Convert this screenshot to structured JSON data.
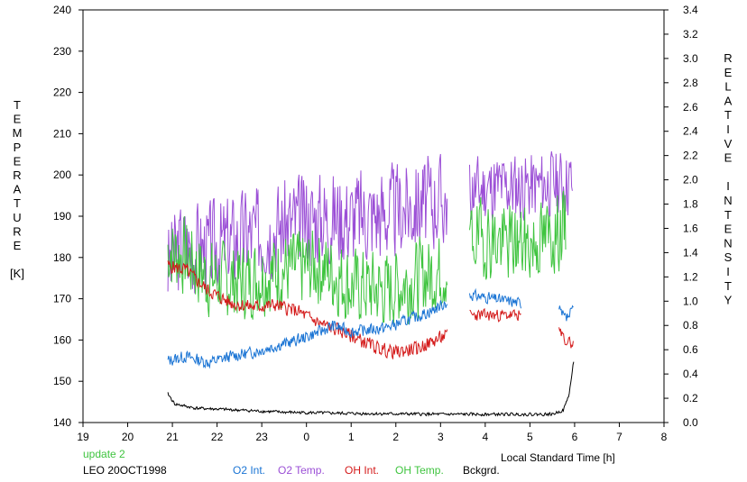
{
  "chart_data": {
    "type": "line",
    "xlabel": "Local Standard Time [h]",
    "ylabel_left": [
      "T",
      "E",
      "M",
      "P",
      "E",
      "R",
      "A",
      "T",
      "U",
      "R",
      "E",
      "",
      "[K]"
    ],
    "ylabel_right": [
      "R",
      "E",
      "L",
      "A",
      "T",
      "I",
      "V",
      "E",
      "",
      "I",
      "N",
      "T",
      "E",
      "N",
      "S",
      "I",
      "T",
      "Y"
    ],
    "x_ticks": [
      "19",
      "20",
      "21",
      "22",
      "23",
      "0",
      "1",
      "2",
      "3",
      "4",
      "5",
      "6",
      "7",
      "8"
    ],
    "y_left_ticks": [
      "140",
      "150",
      "160",
      "170",
      "180",
      "190",
      "200",
      "210",
      "220",
      "230",
      "240"
    ],
    "y_right_ticks": [
      "0.0",
      "0.2",
      "0.4",
      "0.6",
      "0.8",
      "1.0",
      "1.2",
      "1.4",
      "1.6",
      "1.8",
      "2.0",
      "2.2",
      "2.4",
      "2.6",
      "2.8",
      "3.0",
      "3.2",
      "3.4"
    ],
    "ylim_left": [
      140,
      240
    ],
    "ylim_right": [
      0.0,
      3.4
    ],
    "xlim_hours_after_19": [
      0,
      13
    ],
    "status_text": "update 2",
    "station_label": "LEO 20OCT1998",
    "legend": [
      {
        "name": "O2 Int.",
        "color": "#1a74d4"
      },
      {
        "name": "O2 Temp.",
        "color": "#9b4fd6"
      },
      {
        "name": "OH Int.",
        "color": "#d41a1a"
      },
      {
        "name": "OH Temp.",
        "color": "#3fc43f"
      },
      {
        "name": "Bckgrd.",
        "color": "#000000"
      }
    ],
    "series": [
      {
        "name": "O2 Temp.",
        "axis": "left",
        "color": "#9b4fd6",
        "segments": [
          {
            "t0": 20.9,
            "t1": 3.15,
            "base": [
              [
                20.9,
                178
              ],
              [
                21.2,
                183
              ],
              [
                21.8,
                182
              ],
              [
                22.5,
                185
              ],
              [
                23.5,
                188
              ],
              [
                0.3,
                190
              ],
              [
                1.0,
                190
              ],
              [
                1.8,
                191
              ],
              [
                2.5,
                193
              ],
              [
                3.1,
                194
              ]
            ],
            "amp": 11,
            "seed": 3
          },
          {
            "t0": 3.65,
            "t1": 5.95,
            "base": [
              [
                3.65,
                196
              ],
              [
                4.2,
                197
              ],
              [
                5.0,
                197
              ],
              [
                5.6,
                198
              ],
              [
                5.95,
                198
              ]
            ],
            "amp": 8,
            "seed": 11
          }
        ]
      },
      {
        "name": "OH Temp.",
        "axis": "left",
        "color": "#3fc43f",
        "segments": [
          {
            "t0": 20.9,
            "t1": 3.15,
            "base": [
              [
                20.9,
                182
              ],
              [
                21.3,
                180
              ],
              [
                21.8,
                175
              ],
              [
                22.5,
                174
              ],
              [
                23.5,
                177
              ],
              [
                0.3,
                178
              ],
              [
                1.0,
                173
              ],
              [
                1.8,
                172
              ],
              [
                2.5,
                175
              ],
              [
                3.1,
                177
              ]
            ],
            "amp": 9,
            "seed": 7
          },
          {
            "t0": 3.65,
            "t1": 5.8,
            "base": [
              [
                3.65,
                185
              ],
              [
                4.2,
                184
              ],
              [
                5.0,
                183
              ],
              [
                5.6,
                186
              ],
              [
                5.8,
                187
              ]
            ],
            "amp": 9,
            "seed": 19
          }
        ]
      },
      {
        "name": "OH Int.",
        "axis": "left",
        "color": "#d41a1a",
        "segments": [
          {
            "t0": 20.9,
            "t1": 3.15,
            "base": [
              [
                20.9,
                178
              ],
              [
                21.3,
                177
              ],
              [
                21.8,
                172
              ],
              [
                22.3,
                169
              ],
              [
                22.8,
                168
              ],
              [
                23.3,
                168.5
              ],
              [
                23.8,
                167
              ],
              [
                0.3,
                164
              ],
              [
                0.8,
                162
              ],
              [
                1.2,
                160
              ],
              [
                1.6,
                158
              ],
              [
                2.0,
                157
              ],
              [
                2.5,
                158
              ],
              [
                3.1,
                161
              ]
            ],
            "amp": 1.6,
            "seed": 5
          },
          {
            "t0": 3.65,
            "t1": 4.8,
            "base": [
              [
                3.65,
                166
              ],
              [
                4.2,
                166
              ],
              [
                4.8,
                166
              ]
            ],
            "amp": 1.4,
            "seed": 23
          },
          {
            "t0": 5.65,
            "t1": 5.97,
            "base": [
              [
                5.65,
                162
              ],
              [
                5.8,
                160
              ],
              [
                5.97,
                159
              ]
            ],
            "amp": 1.2,
            "seed": 29
          }
        ]
      },
      {
        "name": "O2 Int.",
        "axis": "left",
        "color": "#1a74d4",
        "segments": [
          {
            "t0": 20.9,
            "t1": 3.15,
            "base": [
              [
                20.9,
                155
              ],
              [
                21.3,
                156
              ],
              [
                21.8,
                154.5
              ],
              [
                22.3,
                156
              ],
              [
                22.8,
                157
              ],
              [
                23.3,
                158.5
              ],
              [
                23.8,
                160
              ],
              [
                0.3,
                162
              ],
              [
                0.6,
                163.5
              ],
              [
                1.0,
                162
              ],
              [
                1.4,
                162.5
              ],
              [
                1.8,
                163
              ],
              [
                2.3,
                165
              ],
              [
                2.8,
                167
              ],
              [
                3.1,
                169
              ]
            ],
            "amp": 1.4,
            "seed": 13
          },
          {
            "t0": 3.65,
            "t1": 4.8,
            "base": [
              [
                3.65,
                171
              ],
              [
                4.2,
                170
              ],
              [
                4.8,
                169
              ]
            ],
            "amp": 1.3,
            "seed": 31
          },
          {
            "t0": 5.65,
            "t1": 5.97,
            "base": [
              [
                5.65,
                167
              ],
              [
                5.8,
                165
              ],
              [
                5.97,
                167
              ]
            ],
            "amp": 1.5,
            "seed": 37
          }
        ]
      },
      {
        "name": "Bckgrd.",
        "axis": "left",
        "color": "#000000",
        "segments": [
          {
            "t0": 20.9,
            "t1": 5.98,
            "base": [
              [
                20.9,
                147
              ],
              [
                21.05,
                144.5
              ],
              [
                21.5,
                143.5
              ],
              [
                22.5,
                143
              ],
              [
                23.5,
                142.5
              ],
              [
                1.0,
                142.2
              ],
              [
                3.0,
                142
              ],
              [
                5.0,
                142
              ],
              [
                5.5,
                142
              ],
              [
                5.75,
                143
              ],
              [
                5.88,
                147
              ],
              [
                5.98,
                155
              ]
            ],
            "amp": 0.35,
            "seed": 41
          }
        ]
      }
    ]
  }
}
